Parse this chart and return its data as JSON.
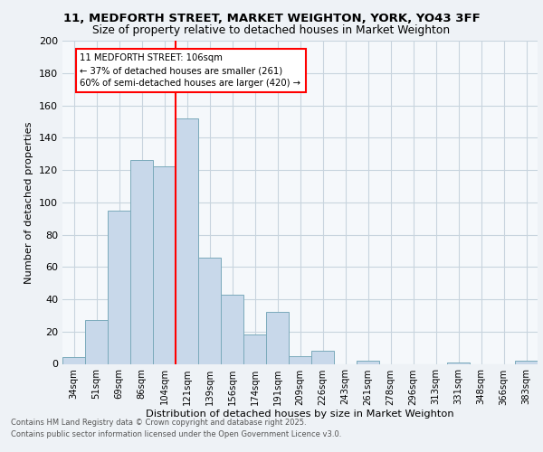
{
  "title1": "11, MEDFORTH STREET, MARKET WEIGHTON, YORK, YO43 3FF",
  "title2": "Size of property relative to detached houses in Market Weighton",
  "xlabel": "Distribution of detached houses by size in Market Weighton",
  "ylabel": "Number of detached properties",
  "categories": [
    "34sqm",
    "51sqm",
    "69sqm",
    "86sqm",
    "104sqm",
    "121sqm",
    "139sqm",
    "156sqm",
    "174sqm",
    "191sqm",
    "209sqm",
    "226sqm",
    "243sqm",
    "261sqm",
    "278sqm",
    "296sqm",
    "313sqm",
    "331sqm",
    "348sqm",
    "366sqm",
    "383sqm"
  ],
  "values": [
    4,
    27,
    95,
    126,
    122,
    152,
    66,
    43,
    18,
    32,
    5,
    8,
    0,
    2,
    0,
    0,
    0,
    1,
    0,
    0,
    2
  ],
  "bar_color": "#c8d8ea",
  "bar_edge_color": "#7aaabb",
  "vline_x_index": 4.5,
  "vline_color": "red",
  "annotation_line1": "11 MEDFORTH STREET: 106sqm",
  "annotation_line2": "← 37% of detached houses are smaller (261)",
  "annotation_line3": "60% of semi-detached houses are larger (420) →",
  "ylim": [
    0,
    200
  ],
  "yticks": [
    0,
    20,
    40,
    60,
    80,
    100,
    120,
    140,
    160,
    180,
    200
  ],
  "footer1": "Contains HM Land Registry data © Crown copyright and database right 2025.",
  "footer2": "Contains public sector information licensed under the Open Government Licence v3.0.",
  "bg_color": "#eef2f6",
  "plot_bg_color": "#f5f8fb",
  "grid_color": "#c8d4de"
}
